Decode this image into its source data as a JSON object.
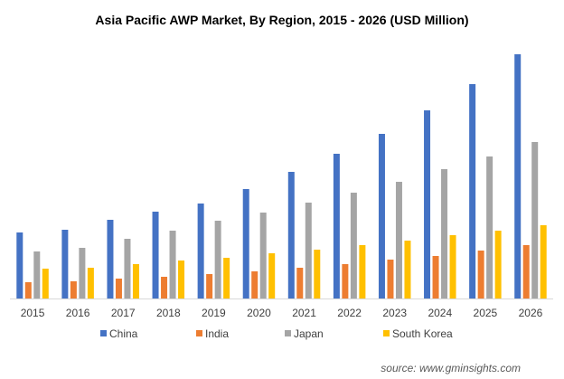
{
  "chart_data": {
    "type": "bar",
    "title": "Asia Pacific AWP Market, By Region, 2015 - 2026 (USD Million)",
    "xlabel": "",
    "ylabel": "",
    "y_axis_visible": false,
    "ylim": [
      0,
      270
    ],
    "grid": false,
    "legend_position": "bottom",
    "categories": [
      "2015",
      "2016",
      "2017",
      "2018",
      "2019",
      "2020",
      "2021",
      "2022",
      "2023",
      "2024",
      "2025",
      "2026"
    ],
    "series": [
      {
        "name": "China",
        "color": "#4472C4",
        "values": [
          73,
          76,
          87,
          96,
          105,
          121,
          140,
          160,
          182,
          208,
          237,
          270
        ]
      },
      {
        "name": "India",
        "color": "#ED7D31",
        "values": [
          18,
          19,
          22,
          24,
          27,
          30,
          34,
          38,
          43,
          47,
          53,
          59
        ]
      },
      {
        "name": "Japan",
        "color": "#A5A5A5",
        "values": [
          52,
          56,
          66,
          75,
          86,
          95,
          106,
          117,
          129,
          143,
          157,
          173
        ]
      },
      {
        "name": "South Korea",
        "color": "#FFC000",
        "values": [
          33,
          34,
          38,
          42,
          45,
          50,
          54,
          59,
          64,
          70,
          75,
          81
        ]
      }
    ]
  },
  "source_text": "source: www.gminsights.com"
}
